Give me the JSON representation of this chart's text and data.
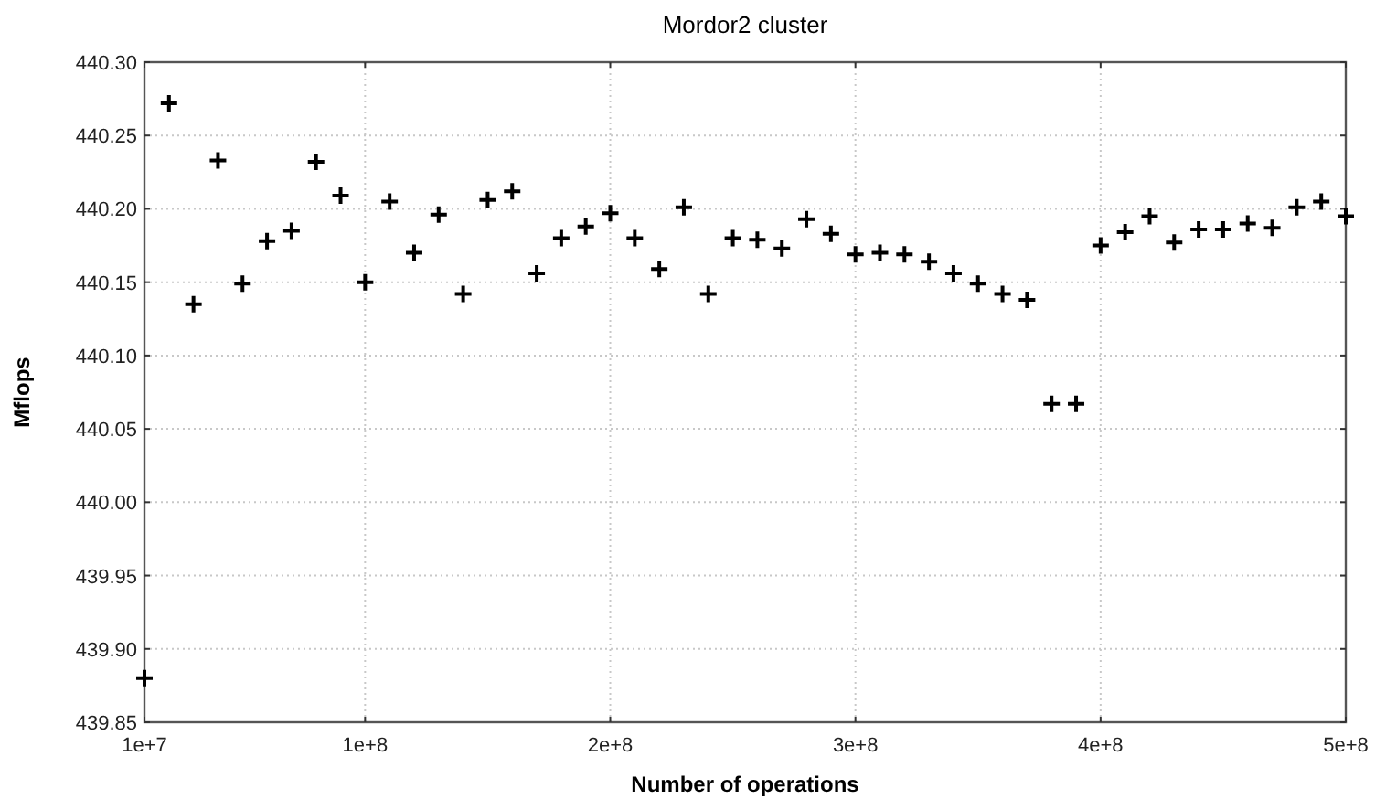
{
  "chart_data": {
    "type": "scatter",
    "title": "Mordor2 cluster",
    "xlabel": "Number of operations",
    "ylabel": "Mflops",
    "x": [
      10000000,
      20000000,
      30000000,
      40000000,
      50000000,
      60000000,
      70000000,
      80000000,
      90000000,
      100000000,
      110000000,
      120000000,
      130000000,
      140000000,
      150000000,
      160000000,
      170000000,
      180000000,
      190000000,
      200000000,
      210000000,
      220000000,
      230000000,
      240000000,
      250000000,
      260000000,
      270000000,
      280000000,
      290000000,
      300000000,
      310000000,
      320000000,
      330000000,
      340000000,
      350000000,
      360000000,
      370000000,
      380000000,
      390000000,
      400000000,
      410000000,
      420000000,
      430000000,
      440000000,
      450000000,
      460000000,
      470000000,
      480000000,
      490000000,
      500000000
    ],
    "series": [
      {
        "color": "#000000",
        "values": [
          439.88,
          440.272,
          440.135,
          440.233,
          440.149,
          440.178,
          440.185,
          440.232,
          440.209,
          440.15,
          440.205,
          440.17,
          440.196,
          440.142,
          440.206,
          440.212,
          440.156,
          440.18,
          440.188,
          440.197,
          440.18,
          440.159,
          440.201,
          440.142,
          440.18,
          440.179,
          440.173,
          440.193,
          440.183,
          440.169,
          440.17,
          440.169,
          440.164,
          440.156,
          440.149,
          440.142,
          440.138,
          440.067,
          440.067,
          440.175,
          440.184,
          440.195,
          440.177,
          440.186,
          440.186,
          440.19,
          440.187,
          440.201,
          440.205,
          440.195
        ]
      }
    ],
    "xlim": [
      10000000,
      500000000
    ],
    "xticks": [
      {
        "value": 10000000,
        "label": "1e+7"
      },
      {
        "value": 100000000,
        "label": "1e+8"
      },
      {
        "value": 200000000,
        "label": "2e+8"
      },
      {
        "value": 300000000,
        "label": "3e+8"
      },
      {
        "value": 400000000,
        "label": "4e+8"
      },
      {
        "value": 500000000,
        "label": "5e+8"
      }
    ],
    "ylim": [
      439.85,
      440.3
    ],
    "yticks": [
      {
        "value": 439.85,
        "label": "439.85"
      },
      {
        "value": 439.9,
        "label": "439.90"
      },
      {
        "value": 439.95,
        "label": "439.95"
      },
      {
        "value": 440,
        "label": "440.00"
      },
      {
        "value": 440.05,
        "label": "440.05"
      },
      {
        "value": 440.1,
        "label": "440.10"
      },
      {
        "value": 440.15,
        "label": "440.15"
      },
      {
        "value": 440.2,
        "label": "440.20"
      },
      {
        "value": 440.25,
        "label": "440.25"
      },
      {
        "value": 440.3,
        "label": "440.30"
      }
    ],
    "grid": true,
    "marker": "cross"
  }
}
